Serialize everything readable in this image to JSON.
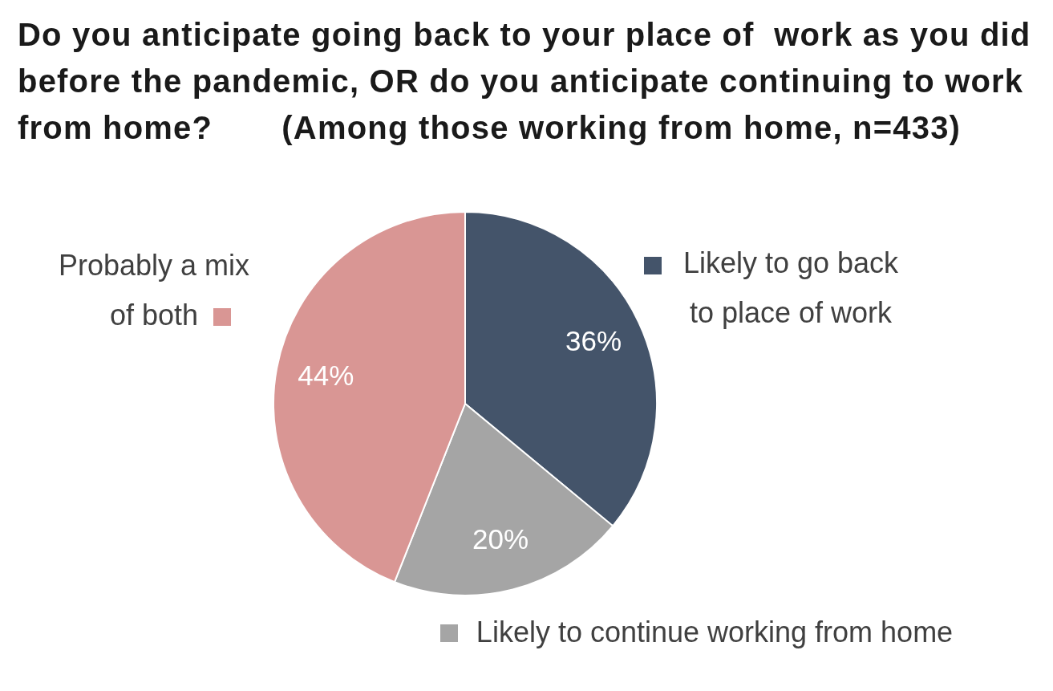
{
  "chart_data": {
    "type": "pie",
    "title": "Do you anticipate going back to your place of  work as you did before the pandemic, OR do you anticipate continuing to work from home?       (Among those working from home, n=433)",
    "categories": [
      "Likely to go back to place of work",
      "Likely to continue working from home",
      "Probably a mix of both"
    ],
    "values": [
      36,
      20,
      44
    ],
    "colors": [
      "#44546a",
      "#a5a5a5",
      "#d99694"
    ],
    "value_labels": [
      "36%",
      "20%",
      "44%"
    ],
    "legend": "right"
  }
}
